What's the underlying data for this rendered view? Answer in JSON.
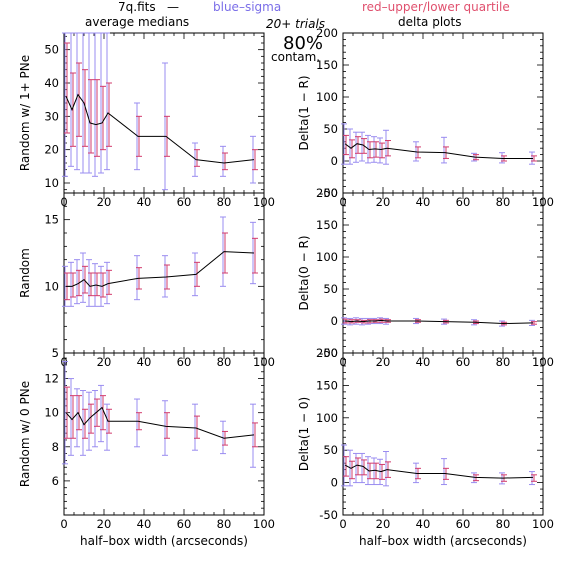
{
  "header": {
    "file": "7q.fits",
    "dash": "—",
    "blue_label": "blue–sigma",
    "red_label": "red–upper/lower quartile",
    "trials": "20+ trials",
    "contam_pct": "80%",
    "contam_word": "contam.",
    "col_left_title": "average medians",
    "col_right_title": "delta plots"
  },
  "colors": {
    "line": "#000000",
    "blue": "#9a8cf0",
    "red": "#d23c6e"
  },
  "chart_data": [
    {
      "type": "line",
      "panel": "left-top",
      "ylabel": "Random w/ 1+ PNe",
      "xlim": [
        0,
        100
      ],
      "ylim": [
        7,
        55
      ],
      "xticks": [
        0,
        20,
        40,
        60,
        80,
        100
      ],
      "yticks": [
        10,
        20,
        30,
        40,
        50
      ],
      "x": [
        1,
        4,
        7,
        10,
        13,
        16,
        19,
        22,
        37,
        51,
        66,
        80,
        95
      ],
      "y": [
        36,
        32,
        36.5,
        34,
        28,
        27.5,
        28,
        31,
        24,
        24,
        17,
        16,
        17
      ],
      "sigma_low": [
        12,
        15,
        14,
        13,
        13,
        12,
        13,
        14,
        14,
        8,
        12,
        12,
        10
      ],
      "sigma_high": [
        55,
        55,
        55,
        55,
        55,
        55,
        55,
        55,
        34,
        46,
        22,
        21,
        24
      ],
      "q_low": [
        25,
        21,
        24,
        21,
        19,
        18,
        20,
        21,
        18,
        18,
        15,
        14,
        14
      ],
      "q_high": [
        52,
        43,
        46,
        44,
        41,
        41,
        39,
        40,
        30,
        30,
        20,
        19,
        20
      ]
    },
    {
      "type": "line",
      "panel": "left-middle",
      "ylabel": "Random",
      "xlim": [
        0,
        100
      ],
      "ylim": [
        5,
        17
      ],
      "xticks": [
        0,
        20,
        40,
        60,
        80,
        100
      ],
      "yticks": [
        5,
        10,
        15
      ],
      "x": [
        1,
        4,
        7,
        10,
        13,
        16,
        19,
        22,
        37,
        51,
        66,
        80,
        95
      ],
      "y": [
        10,
        10,
        10.2,
        10.5,
        10,
        10.1,
        10,
        10.2,
        10.6,
        10.7,
        10.9,
        12.6,
        12.5
      ],
      "sigma_low": [
        8.5,
        8.5,
        8.7,
        8.8,
        8.5,
        8.5,
        8.5,
        8.7,
        9.0,
        9.2,
        9.3,
        10.0,
        10.2
      ],
      "sigma_high": [
        11.5,
        11.8,
        12.0,
        12.5,
        12.0,
        11.7,
        11.5,
        11.8,
        12.3,
        12.3,
        12.5,
        15.2,
        14.8
      ],
      "q_low": [
        9.0,
        9.2,
        9.3,
        9.5,
        9.3,
        9.3,
        9.2,
        9.4,
        9.8,
        9.8,
        10.0,
        11.0,
        11.0
      ],
      "q_high": [
        11.0,
        11.0,
        11.2,
        11.5,
        11.0,
        11.0,
        11.0,
        11.2,
        11.4,
        11.6,
        11.8,
        14.0,
        13.6
      ]
    },
    {
      "type": "line",
      "panel": "left-bottom",
      "ylabel": "Random w/ 0 PNe",
      "xlim": [
        0,
        100
      ],
      "ylim": [
        4,
        13.5
      ],
      "xticks": [
        0,
        20,
        40,
        60,
        80,
        100
      ],
      "yticks": [
        6,
        8,
        10,
        12
      ],
      "xlabel": "half–box width (arcseconds)",
      "x": [
        1,
        4,
        7,
        10,
        13,
        16,
        19,
        22,
        37,
        51,
        66,
        80,
        95
      ],
      "y": [
        10,
        9.6,
        10,
        9.3,
        9.7,
        10,
        10.3,
        9.5,
        9.5,
        9.2,
        9.1,
        8.5,
        8.7
      ],
      "sigma_low": [
        7.0,
        7.5,
        8.0,
        7.5,
        7.8,
        8.0,
        8.3,
        7.8,
        8.0,
        7.5,
        7.8,
        7.6,
        6.8
      ],
      "sigma_high": [
        13.0,
        12.0,
        11.4,
        11.3,
        11.2,
        11.3,
        11.6,
        10.5,
        10.8,
        10.7,
        10.5,
        9.5,
        10.5
      ],
      "q_low": [
        8.5,
        8.5,
        9.0,
        8.5,
        8.8,
        9.2,
        9.0,
        8.8,
        9.0,
        8.5,
        8.5,
        8.1,
        8.0
      ],
      "q_high": [
        11.5,
        11.0,
        11.0,
        10.2,
        10.5,
        10.8,
        11.0,
        10.2,
        10.0,
        10.0,
        9.8,
        8.9,
        9.4
      ]
    },
    {
      "type": "line",
      "panel": "right-top",
      "ylabel": "Delta(1 − R)",
      "xlim": [
        0,
        100
      ],
      "ylim": [
        -50,
        200
      ],
      "xticks": [
        0,
        20,
        40,
        60,
        80,
        100
      ],
      "yticks": [
        -50,
        0,
        50,
        100,
        150,
        200
      ],
      "x": [
        1,
        4,
        7,
        10,
        13,
        16,
        19,
        22,
        37,
        51,
        66,
        80,
        95
      ],
      "y": [
        27,
        20,
        27,
        25,
        18,
        19,
        18,
        20,
        14,
        13,
        6,
        4,
        4
      ],
      "sigma_low": [
        -5,
        -5,
        -2,
        0,
        -3,
        -2,
        -3,
        -5,
        0,
        -3,
        0,
        -3,
        -5
      ],
      "sigma_high": [
        58,
        50,
        45,
        45,
        40,
        38,
        36,
        48,
        30,
        37,
        12,
        13,
        14
      ],
      "q_low": [
        10,
        5,
        12,
        12,
        5,
        6,
        5,
        8,
        5,
        4,
        2,
        0,
        0
      ],
      "q_high": [
        40,
        33,
        38,
        35,
        30,
        30,
        28,
        32,
        22,
        22,
        10,
        8,
        8
      ]
    },
    {
      "type": "line",
      "panel": "right-middle",
      "ylabel": "Delta(0 − R)",
      "xlim": [
        0,
        100
      ],
      "ylim": [
        -50,
        200
      ],
      "xticks": [
        0,
        20,
        40,
        60,
        80,
        100
      ],
      "yticks": [
        -50,
        0,
        50,
        100,
        150,
        200
      ],
      "x": [
        1,
        4,
        7,
        10,
        13,
        16,
        19,
        22,
        37,
        51,
        66,
        80,
        95
      ],
      "y": [
        0,
        -1,
        0,
        -1,
        0,
        0,
        1,
        0,
        0,
        -1,
        -2,
        -4,
        -3
      ],
      "sigma_low": [
        -5,
        -6,
        -5,
        -6,
        -5,
        -4,
        -4,
        -5,
        -4,
        -5,
        -6,
        -8,
        -7
      ],
      "sigma_high": [
        5,
        4,
        5,
        4,
        4,
        4,
        5,
        4,
        4,
        3,
        2,
        0,
        1
      ],
      "q_low": [
        -3,
        -3,
        -2,
        -3,
        -3,
        -2,
        -2,
        -2,
        -2,
        -3,
        -4,
        -6,
        -5
      ],
      "q_high": [
        3,
        2,
        2,
        1,
        2,
        2,
        3,
        2,
        2,
        1,
        0,
        -2,
        -1
      ]
    },
    {
      "type": "line",
      "panel": "right-bottom",
      "ylabel": "Delta(1 − 0)",
      "xlim": [
        0,
        100
      ],
      "ylim": [
        -50,
        200
      ],
      "xticks": [
        0,
        20,
        40,
        60,
        80,
        100
      ],
      "yticks": [
        -50,
        0,
        50,
        100,
        150,
        200
      ],
      "xlabel": "half–box width (arcseconds)",
      "x": [
        1,
        4,
        7,
        10,
        13,
        16,
        19,
        22,
        37,
        51,
        66,
        80,
        95
      ],
      "y": [
        27,
        22,
        27,
        25,
        18,
        19,
        17,
        20,
        14,
        14,
        8,
        7,
        8
      ],
      "sigma_low": [
        -5,
        -5,
        0,
        0,
        -3,
        -3,
        -3,
        -5,
        0,
        -3,
        0,
        -2,
        -3
      ],
      "sigma_high": [
        58,
        50,
        45,
        45,
        40,
        38,
        36,
        48,
        30,
        37,
        15,
        15,
        17
      ],
      "q_low": [
        10,
        6,
        12,
        12,
        6,
        6,
        5,
        8,
        6,
        5,
        3,
        2,
        2
      ],
      "q_high": [
        40,
        33,
        38,
        35,
        30,
        30,
        28,
        32,
        22,
        22,
        12,
        12,
        12
      ]
    }
  ]
}
